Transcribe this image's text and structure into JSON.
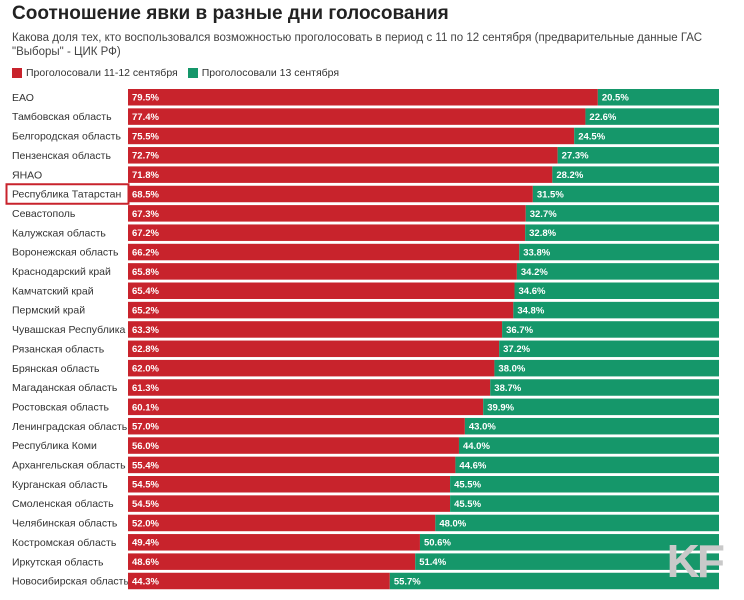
{
  "title": "Соотношение явки в разные дни голосования",
  "subtitle": "Какова доля тех, кто воспользовался возможностью проголосовать в период с 11 по 12 сентября (предварительные данные ГАС \"Выборы\" - ЦИК РФ)",
  "watermark": "KF",
  "colors": {
    "early": "#c8232c",
    "day": "#15976a",
    "highlight": "#c8232c"
  },
  "chart_data": {
    "type": "bar",
    "stacked": true,
    "orientation": "horizontal",
    "value_unit": "%",
    "highlighted_category": "Республика Татарстан",
    "categories": [
      "ЕАО",
      "Тамбовская область",
      "Белгородская область",
      "Пензенская область",
      "ЯНАО",
      "Республика Татарстан",
      "Севастополь",
      "Калужская область",
      "Воронежская область",
      "Краснодарский край",
      "Камчатский край",
      "Пермский край",
      "Чувашская Республика",
      "Рязанская область",
      "Брянская область",
      "Магаданская область",
      "Ростовская область",
      "Ленинградская область",
      "Республика Коми",
      "Архангельская область",
      "Курганская область",
      "Смоленская область",
      "Челябинская область",
      "Костромская область",
      "Иркутская область",
      "Новосибирская область"
    ],
    "series": [
      {
        "name": "Проголосовали 11-12 сентября",
        "values": [
          79.5,
          77.4,
          75.5,
          72.7,
          71.8,
          68.5,
          67.3,
          67.2,
          66.2,
          65.8,
          65.4,
          65.2,
          63.3,
          62.8,
          62.0,
          61.3,
          60.1,
          57.0,
          56.0,
          55.4,
          54.5,
          54.5,
          52.0,
          49.4,
          48.6,
          44.3
        ]
      },
      {
        "name": "Проголосовали 13 сентября",
        "values": [
          20.5,
          22.6,
          24.5,
          27.3,
          28.2,
          31.5,
          32.7,
          32.8,
          33.8,
          34.2,
          34.6,
          34.8,
          36.7,
          37.2,
          38.0,
          38.7,
          39.9,
          43.0,
          44.0,
          44.6,
          45.5,
          45.5,
          48.0,
          50.6,
          51.4,
          55.7
        ]
      }
    ],
    "xlim": [
      0,
      100
    ],
    "legend": "top-left"
  }
}
